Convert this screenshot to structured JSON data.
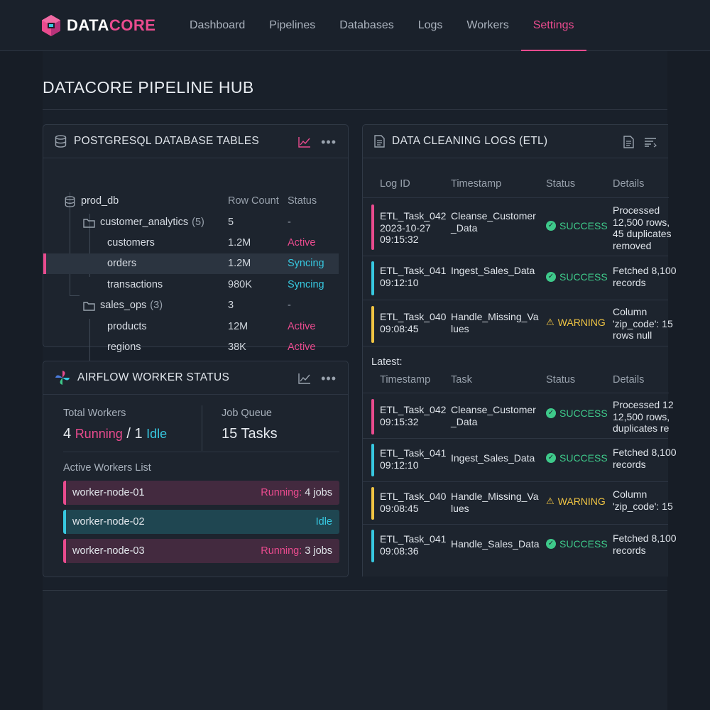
{
  "app": {
    "logo_part1": "DATA",
    "logo_part2": "CORE"
  },
  "nav": {
    "items": [
      "Dashboard",
      "Pipelines",
      "Databases",
      "Logs",
      "Workers",
      "Settings"
    ],
    "active": "Settings"
  },
  "page": {
    "title": "DATACORE PIPELINE HUB"
  },
  "db_card": {
    "title": "POSTGRESQL DATABASE TABLES",
    "col_rowcount": "Row Count",
    "col_status": "Status",
    "rows": [
      {
        "name": "prod_db",
        "count": "",
        "rowcount": "",
        "status": ""
      },
      {
        "name": "customer_analytics",
        "count": "(5)",
        "rowcount": "5",
        "status": "-"
      },
      {
        "name": "customers",
        "count": "",
        "rowcount": "1.2M",
        "status": "Active"
      },
      {
        "name": "orders",
        "count": "",
        "rowcount": "1.2M",
        "status": "Syncing"
      },
      {
        "name": "transactions",
        "count": "",
        "rowcount": "980K",
        "status": "Syncing"
      },
      {
        "name": "sales_ops",
        "count": "(3)",
        "rowcount": "3",
        "status": "-"
      },
      {
        "name": "products",
        "count": "",
        "rowcount": "12M",
        "status": "Active"
      },
      {
        "name": "regions",
        "count": "",
        "rowcount": "38K",
        "status": "Active"
      }
    ]
  },
  "workers_card": {
    "title": "AIRFLOW WORKER STATUS",
    "total_label": "Total Workers",
    "running_num": "4",
    "running_word": "Running",
    "sep": "/",
    "idle_num": "1",
    "idle_word": "Idle",
    "queue_label": "Job Queue",
    "queue_value": "15 Tasks",
    "list_label": "Active Workers List",
    "workers": [
      {
        "name": "worker-node-01",
        "state": "Running:",
        "jobs": "4 jobs"
      },
      {
        "name": "worker-node-02",
        "state": "Idle",
        "jobs": ""
      },
      {
        "name": "worker-node-03",
        "state": "Running:",
        "jobs": "3 jobs"
      }
    ]
  },
  "logs_card": {
    "title": "DATA CLEANING LOGS (ETL)",
    "headers": [
      "Log ID",
      "Timestamp",
      "Status",
      "Details"
    ],
    "rows": [
      {
        "id": "ETL_Task_042",
        "date": "2023-10-27",
        "time": "09:15:32",
        "task": "Cleanse_Customer_Data",
        "status": "SUCCESS",
        "details": [
          "Processed",
          "12,500 rows,",
          "45 duplicates",
          "removed"
        ]
      },
      {
        "id": "ETL_Task_041",
        "date": "",
        "time": "09:12:10",
        "task": "Ingest_Sales_Data",
        "status": "SUCCESS",
        "details": [
          "Fetched 8,100",
          "records"
        ]
      },
      {
        "id": "ETL_Task_040",
        "date": "",
        "time": "09:08:45",
        "task": "Handle_Missing_Values",
        "status": "WARNING",
        "details": [
          "Column",
          "'zip_code': 15",
          "rows null"
        ]
      }
    ],
    "latest_label": "Latest:",
    "headers2": [
      "Timestamp",
      "Task",
      "Status",
      "Details"
    ],
    "rows2": [
      {
        "id": "ETL_Task_042",
        "time": "09:15:32",
        "task": "Cleanse_Customer_Data",
        "status": "SUCCESS",
        "details": [
          "Processed 12",
          "12,500 rows,",
          "duplicates re"
        ]
      },
      {
        "id": "ETL_Task_041",
        "time": "09:12:10",
        "task": "Ingest_Sales_Data",
        "status": "SUCCESS",
        "details": [
          "Fetched 8,100",
          "records"
        ]
      },
      {
        "id": "ETL_Task_040",
        "time": "09:08:45",
        "task": "Handle_Missing_Values",
        "status": "WARNING",
        "details": [
          "Column",
          "'zip_code': 15"
        ]
      },
      {
        "id": "ETL_Task_041",
        "time": "09:08:36",
        "task": "Handle_Sales_Data",
        "status": "SUCCESS",
        "details": [
          "Fetched 8,100",
          "records"
        ]
      }
    ]
  },
  "colors": {
    "accent": "#e94b8e",
    "cyan": "#37c8e0",
    "success": "#3ec98a",
    "warning": "#f0c443"
  }
}
